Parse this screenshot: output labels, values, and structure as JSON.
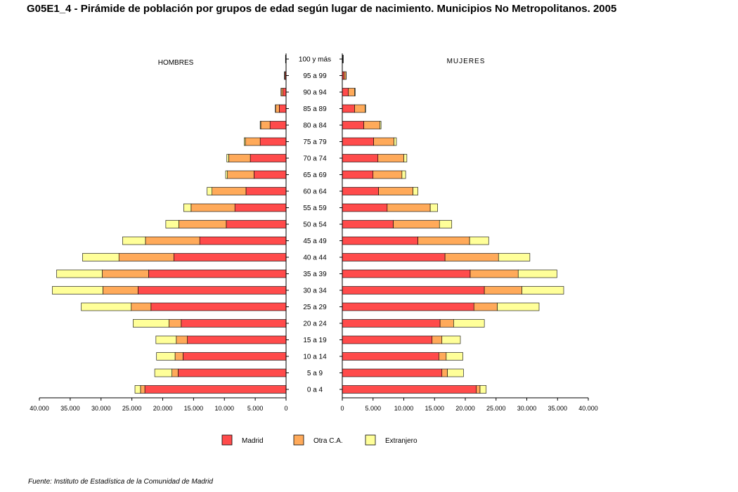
{
  "title": "G05E1_4 - Pirámide de población por grupos de edad según lugar de nacimiento. Municipios No Metropolitanos. 2005",
  "source": "Fuente: Instituto de Estadística de la Comunidad de Madrid",
  "colors": {
    "Madrid": "#ff4b4b",
    "Otra C.A.": "#ffaa5a",
    "Extranjero": "#ffff99",
    "outline": "#000000"
  },
  "chart_data": {
    "type": "bar",
    "subtype": "population-pyramid",
    "panels": {
      "left": "HOMBRES",
      "right": "MUJERES"
    },
    "categories": [
      "0 a 4",
      "5 a 9",
      "10 a 14",
      "15 a 19",
      "20 a 24",
      "25 a 29",
      "30 a 34",
      "35 a 39",
      "40 a  44",
      "45 a 49",
      "50 a 54",
      "55 a 59",
      "60 a 64",
      "65 a 69",
      "70 a 74",
      "75 a 79",
      "80 a 84",
      "85 a 89",
      "90 a 94",
      "95 a 99",
      "100 y más"
    ],
    "series": [
      {
        "name": "Madrid",
        "hombres": [
          22900,
          17500,
          16700,
          16000,
          17000,
          21900,
          24000,
          22300,
          18200,
          14000,
          9700,
          8300,
          6500,
          5200,
          5800,
          4200,
          2600,
          1100,
          500,
          150,
          40
        ],
        "mujeres": [
          21800,
          16200,
          15700,
          14600,
          15900,
          21400,
          23100,
          20800,
          16700,
          12300,
          8300,
          7300,
          5900,
          5000,
          5800,
          5100,
          3500,
          2000,
          1000,
          300,
          80
        ]
      },
      {
        "name": "Otra C.A.",
        "hombres": [
          700,
          1000,
          1300,
          1800,
          2000,
          3200,
          5700,
          7500,
          8900,
          8800,
          7700,
          7100,
          5500,
          4300,
          3500,
          2400,
          1500,
          600,
          300,
          100,
          30
        ],
        "mujeres": [
          600,
          900,
          1200,
          1600,
          2200,
          3800,
          6100,
          7800,
          8700,
          8400,
          7500,
          7000,
          5600,
          4700,
          4200,
          3300,
          2600,
          1700,
          1000,
          300,
          60
        ]
      },
      {
        "name": "Extranjero",
        "hombres": [
          900,
          2800,
          3000,
          3300,
          5800,
          8100,
          8200,
          7400,
          5900,
          3700,
          2100,
          1200,
          800,
          300,
          300,
          200,
          100,
          50,
          30,
          20,
          20
        ],
        "mujeres": [
          1000,
          2600,
          2700,
          3000,
          5000,
          6800,
          6800,
          6300,
          5100,
          3100,
          2000,
          1200,
          800,
          600,
          500,
          400,
          200,
          100,
          100,
          30,
          20
        ]
      }
    ],
    "xlim": [
      0,
      40000
    ],
    "ticks_hombres": [
      "40.000",
      "35.000",
      "30.000",
      "25.000",
      "20.000",
      "15.000",
      "10.000",
      "5.000",
      "0"
    ],
    "ticks_mujeres": [
      "0",
      "5.000",
      "10.000",
      "15.000",
      "20.000",
      "25.000",
      "30.000",
      "35.000",
      "40.000"
    ],
    "legend": [
      "Madrid",
      "Otra C.A.",
      "Extranjero"
    ],
    "legend_position": "bottom",
    "grid": false
  }
}
